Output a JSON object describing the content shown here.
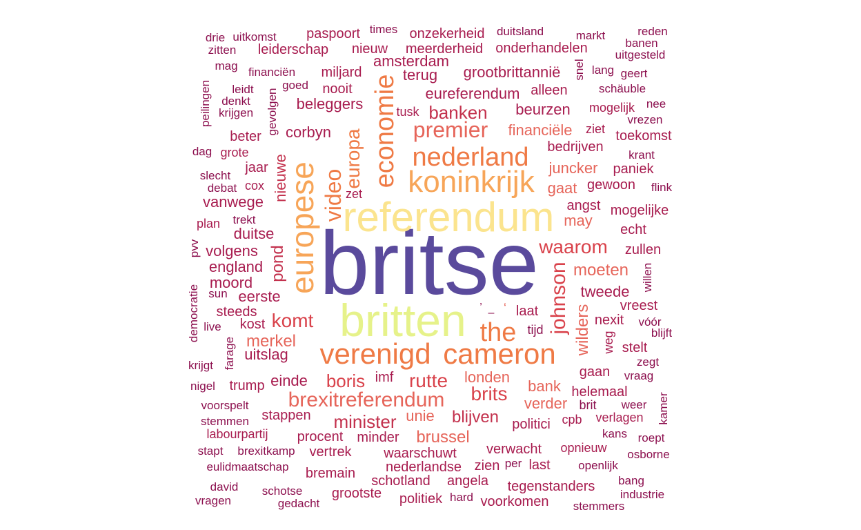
{
  "palette": {
    "big": "#5a4a9c",
    "pale_yellow_green": "#e6f28a",
    "pale_yellow": "#fbe48e",
    "light_orange": "#f7a558",
    "orange": "#ef7a45",
    "salmon": "#e6655a",
    "red": "#d9424b",
    "crimson": "#c3314d",
    "dark_crimson": "#a81c4f",
    "maroon": "#8c0f4e"
  },
  "words": [
    {
      "text": "britse",
      "color": "big"
    },
    {
      "text": "britten",
      "color": "pale_yellow_green"
    },
    {
      "text": "referendum",
      "color": "pale_yellow"
    },
    {
      "text": "europese",
      "color": "light_orange"
    },
    {
      "text": "koninkrijk",
      "color": "light_orange"
    },
    {
      "text": "verenigd",
      "color": "orange"
    },
    {
      "text": "cameron",
      "color": "orange"
    },
    {
      "text": "nederland",
      "color": "orange"
    },
    {
      "text": "economie",
      "color": "orange"
    },
    {
      "text": "video",
      "color": "orange"
    },
    {
      "text": "europa",
      "color": "orange"
    },
    {
      "text": "the",
      "color": "orange"
    },
    {
      "text": "premier",
      "color": "salmon"
    },
    {
      "text": "brexitreferendum",
      "color": "salmon"
    },
    {
      "text": "komt",
      "color": "red"
    },
    {
      "text": "johnson",
      "color": "red"
    },
    {
      "text": "waarom",
      "color": "red"
    },
    {
      "text": "rutte",
      "color": "red"
    },
    {
      "text": "brits",
      "color": "red"
    },
    {
      "text": "boris",
      "color": "red"
    },
    {
      "text": "minister",
      "color": "crimson"
    },
    {
      "text": "banken",
      "color": "crimson"
    },
    {
      "text": "merkel",
      "color": "salmon"
    },
    {
      "text": "wilders",
      "color": "salmon"
    },
    {
      "text": "moeten",
      "color": "salmon"
    },
    {
      "text": "brussel",
      "color": "salmon"
    },
    {
      "text": "blijven",
      "color": "crimson"
    },
    {
      "text": "pond",
      "color": "crimson"
    },
    {
      "text": "financiële",
      "color": "salmon"
    },
    {
      "text": "juncker",
      "color": "salmon"
    },
    {
      "text": "gaat",
      "color": "salmon"
    },
    {
      "text": "may",
      "color": "salmon"
    },
    {
      "text": "londen",
      "color": "salmon"
    },
    {
      "text": "bank",
      "color": "salmon"
    },
    {
      "text": "unie",
      "color": "salmon"
    },
    {
      "text": "verder",
      "color": "salmon"
    },
    {
      "text": "nieuwe",
      "color": "crimson"
    },
    {
      "text": "tweede",
      "color": "dark_crimson"
    },
    {
      "text": "beurzen",
      "color": "dark_crimson"
    },
    {
      "text": "bedrijven",
      "color": "dark_crimson"
    },
    {
      "text": "terug",
      "color": "dark_crimson"
    },
    {
      "text": "grootbrittannië",
      "color": "dark_crimson"
    },
    {
      "text": "eureferendum",
      "color": "dark_crimson"
    },
    {
      "text": "beleggers",
      "color": "dark_crimson"
    },
    {
      "text": "corbyn",
      "color": "dark_crimson"
    },
    {
      "text": "amsterdam",
      "color": "dark_crimson"
    },
    {
      "text": "england",
      "color": "dark_crimson"
    },
    {
      "text": "duitse",
      "color": "dark_crimson"
    },
    {
      "text": "vanwege",
      "color": "dark_crimson"
    },
    {
      "text": "eerste",
      "color": "dark_crimson"
    },
    {
      "text": "moord",
      "color": "dark_crimson"
    },
    {
      "text": "volgens",
      "color": "dark_crimson"
    },
    {
      "text": "uitslag",
      "color": "dark_crimson"
    },
    {
      "text": "einde",
      "color": "dark_crimson"
    },
    {
      "text": "stappen",
      "color": "dark_crimson"
    },
    {
      "text": "procent",
      "color": "dark_crimson"
    },
    {
      "text": "minder",
      "color": "dark_crimson"
    },
    {
      "text": "waarschuwt",
      "color": "dark_crimson"
    },
    {
      "text": "verwacht",
      "color": "dark_crimson"
    },
    {
      "text": "politici",
      "color": "dark_crimson"
    },
    {
      "text": "helemaal",
      "color": "dark_crimson"
    },
    {
      "text": "gaan",
      "color": "dark_crimson"
    },
    {
      "text": "laat",
      "color": "dark_crimson"
    },
    {
      "text": "angst",
      "color": "dark_crimson"
    },
    {
      "text": "echt",
      "color": "dark_crimson"
    },
    {
      "text": "nederlandse",
      "color": "dark_crimson"
    },
    {
      "text": "angela",
      "color": "dark_crimson"
    },
    {
      "text": "schotland",
      "color": "dark_crimson"
    },
    {
      "text": "tegenstanders",
      "color": "dark_crimson"
    },
    {
      "text": "voorkomen",
      "color": "dark_crimson"
    },
    {
      "text": "grootste",
      "color": "dark_crimson"
    },
    {
      "text": "politiek",
      "color": "dark_crimson"
    },
    {
      "text": "bremain",
      "color": "dark_crimson"
    },
    {
      "text": "vertrek",
      "color": "dark_crimson"
    },
    {
      "text": "labourpartij",
      "color": "dark_crimson"
    },
    {
      "text": "leiderschap",
      "color": "dark_crimson"
    },
    {
      "text": "paspoort",
      "color": "dark_crimson"
    },
    {
      "text": "onzekerheid",
      "color": "dark_crimson"
    },
    {
      "text": "meerderheid",
      "color": "dark_crimson"
    },
    {
      "text": "onderhandelen",
      "color": "dark_crimson"
    },
    {
      "text": "nieuw",
      "color": "dark_crimson"
    },
    {
      "text": "nooit",
      "color": "dark_crimson"
    },
    {
      "text": "miljard",
      "color": "dark_crimson"
    },
    {
      "text": "alleen",
      "color": "dark_crimson"
    },
    {
      "text": "mogelijk",
      "color": "dark_crimson"
    },
    {
      "text": "toekomst",
      "color": "dark_crimson"
    },
    {
      "text": "gewoon",
      "color": "dark_crimson"
    },
    {
      "text": "paniek",
      "color": "dark_crimson"
    },
    {
      "text": "mogelijke",
      "color": "dark_crimson"
    },
    {
      "text": "zullen",
      "color": "dark_crimson"
    },
    {
      "text": "vreest",
      "color": "dark_crimson"
    },
    {
      "text": "nexit",
      "color": "dark_crimson"
    },
    {
      "text": "stelt",
      "color": "dark_crimson"
    },
    {
      "text": "verlagen",
      "color": "dark_crimson"
    },
    {
      "text": "opnieuw",
      "color": "dark_crimson"
    },
    {
      "text": "last",
      "color": "dark_crimson"
    },
    {
      "text": "zien",
      "color": "dark_crimson"
    },
    {
      "text": "imf",
      "color": "dark_crimson"
    },
    {
      "text": "trump",
      "color": "dark_crimson"
    },
    {
      "text": "kost",
      "color": "dark_crimson"
    },
    {
      "text": "steeds",
      "color": "dark_crimson"
    },
    {
      "text": "jaar",
      "color": "dark_crimson"
    },
    {
      "text": "beter",
      "color": "dark_crimson"
    },
    {
      "text": "grote",
      "color": "dark_crimson"
    },
    {
      "text": "cox",
      "color": "dark_crimson"
    },
    {
      "text": "plan",
      "color": "dark_crimson"
    },
    {
      "text": "zet",
      "color": "dark_crimson"
    },
    {
      "text": "tusk",
      "color": "dark_crimson"
    },
    {
      "text": "ziet",
      "color": "dark_crimson"
    },
    {
      "text": "weg",
      "color": "dark_crimson"
    },
    {
      "text": "cpb",
      "color": "dark_crimson"
    },
    {
      "text": "tijd",
      "color": "maroon"
    },
    {
      "text": "brit",
      "color": "maroon"
    },
    {
      "text": "kamer",
      "color": "maroon"
    },
    {
      "text": "times",
      "color": "maroon"
    },
    {
      "text": "duitsland",
      "color": "maroon"
    },
    {
      "text": "markt",
      "color": "maroon"
    },
    {
      "text": "reden",
      "color": "maroon"
    },
    {
      "text": "banen",
      "color": "maroon"
    },
    {
      "text": "uitgesteld",
      "color": "maroon"
    },
    {
      "text": "drie",
      "color": "maroon"
    },
    {
      "text": "uitkomst",
      "color": "maroon"
    },
    {
      "text": "zitten",
      "color": "maroon"
    },
    {
      "text": "mag",
      "color": "maroon"
    },
    {
      "text": "financiën",
      "color": "maroon"
    },
    {
      "text": "goed",
      "color": "maroon"
    },
    {
      "text": "leidt",
      "color": "maroon"
    },
    {
      "text": "denkt",
      "color": "maroon"
    },
    {
      "text": "krijgen",
      "color": "maroon"
    },
    {
      "text": "peilingen",
      "color": "maroon"
    },
    {
      "text": "gevolgen",
      "color": "maroon"
    },
    {
      "text": "snel",
      "color": "maroon"
    },
    {
      "text": "lang",
      "color": "maroon"
    },
    {
      "text": "geert",
      "color": "maroon"
    },
    {
      "text": "schäuble",
      "color": "maroon"
    },
    {
      "text": "nee",
      "color": "maroon"
    },
    {
      "text": "vrezen",
      "color": "maroon"
    },
    {
      "text": "krant",
      "color": "maroon"
    },
    {
      "text": "flink",
      "color": "maroon"
    },
    {
      "text": "dag",
      "color": "maroon"
    },
    {
      "text": "slecht",
      "color": "maroon"
    },
    {
      "text": "debat",
      "color": "maroon"
    },
    {
      "text": "trekt",
      "color": "maroon"
    },
    {
      "text": "pvv",
      "color": "maroon"
    },
    {
      "text": "sun",
      "color": "maroon"
    },
    {
      "text": "democratie",
      "color": "maroon"
    },
    {
      "text": "live",
      "color": "maroon"
    },
    {
      "text": "farage",
      "color": "maroon"
    },
    {
      "text": "krijgt",
      "color": "maroon"
    },
    {
      "text": "nigel",
      "color": "maroon"
    },
    {
      "text": "voorspelt",
      "color": "maroon"
    },
    {
      "text": "stemmen",
      "color": "maroon"
    },
    {
      "text": "stapt",
      "color": "maroon"
    },
    {
      "text": "brexitkamp",
      "color": "maroon"
    },
    {
      "text": "eulidmaatschap",
      "color": "maroon"
    },
    {
      "text": "david",
      "color": "maroon"
    },
    {
      "text": "vragen",
      "color": "maroon"
    },
    {
      "text": "schotse",
      "color": "maroon"
    },
    {
      "text": "gedacht",
      "color": "maroon"
    },
    {
      "text": "hard",
      "color": "maroon"
    },
    {
      "text": "per",
      "color": "maroon"
    },
    {
      "text": "openlijk",
      "color": "maroon"
    },
    {
      "text": "bang",
      "color": "maroon"
    },
    {
      "text": "industrie",
      "color": "maroon"
    },
    {
      "text": "stemmers",
      "color": "maroon"
    },
    {
      "text": "osborne",
      "color": "maroon"
    },
    {
      "text": "roept",
      "color": "maroon"
    },
    {
      "text": "kans",
      "color": "maroon"
    },
    {
      "text": "weer",
      "color": "maroon"
    },
    {
      "text": "vraag",
      "color": "maroon"
    },
    {
      "text": "zegt",
      "color": "maroon"
    },
    {
      "text": "blijft",
      "color": "maroon"
    },
    {
      "text": "vóór",
      "color": "maroon"
    },
    {
      "text": "willen",
      "color": "maroon"
    },
    {
      "text": "’",
      "color": "maroon"
    },
    {
      "text": "–",
      "color": "maroon"
    },
    {
      "text": "‘",
      "color": "salmon"
    }
  ]
}
